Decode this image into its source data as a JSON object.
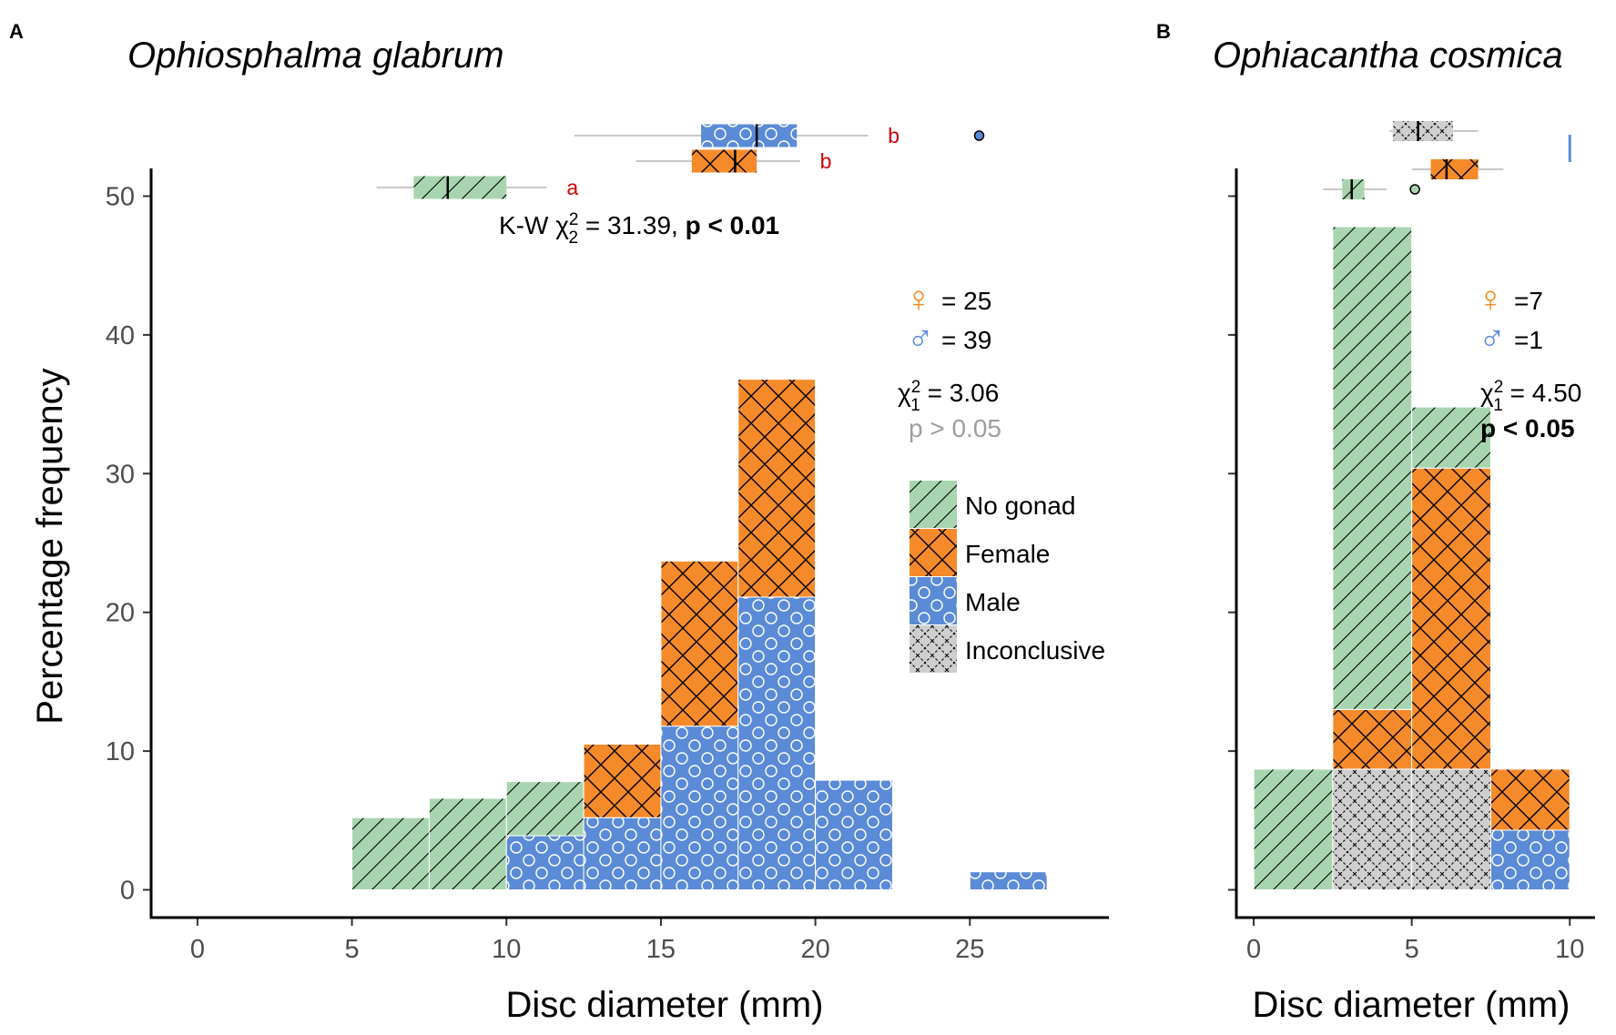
{
  "chart_data": [
    {
      "type": "bar",
      "panel": "A",
      "title": "Ophiosphalma glabrum",
      "xlabel": "Disc diameter (mm)",
      "ylabel": "Percentage frequency",
      "xlim": [
        -1.5,
        29.5
      ],
      "ylim": [
        -2,
        52
      ],
      "xticks": [
        "0",
        "5",
        "10",
        "15",
        "20",
        "25"
      ],
      "yticks": [
        "0",
        "10",
        "20",
        "30",
        "40",
        "50"
      ],
      "bin_width": 2.5,
      "bin_starts": [
        5,
        7.5,
        10,
        12.5,
        15,
        17.5,
        20,
        22.5,
        25
      ],
      "series": [
        {
          "name": "Male",
          "values": [
            0,
            0,
            3.9,
            5.2,
            11.8,
            21.1,
            7.9,
            0,
            1.3
          ]
        },
        {
          "name": "Female",
          "values": [
            0,
            0,
            0,
            5.3,
            11.9,
            15.7,
            0,
            0,
            0
          ]
        },
        {
          "name": "No gonad",
          "values": [
            5.2,
            6.6,
            3.9,
            0,
            0,
            0,
            0,
            0,
            0
          ]
        },
        {
          "name": "Inconclusive",
          "values": [
            0,
            0,
            0,
            0,
            0,
            0,
            0,
            0,
            0
          ]
        }
      ],
      "boxplots": [
        {
          "group": "Male",
          "whisker_low": 12.2,
          "q1": 16.3,
          "median": 18.1,
          "q3": 19.4,
          "whisker_high": 21.7,
          "outliers": [
            25.3
          ],
          "letter": "b"
        },
        {
          "group": "Female",
          "whisker_low": 14.2,
          "q1": 16,
          "median": 17.4,
          "q3": 18.1,
          "whisker_high": 19.5,
          "outliers": [],
          "letter": "b"
        },
        {
          "group": "No gonad",
          "whisker_low": 5.8,
          "q1": 7,
          "median": 8.1,
          "q3": 10,
          "whisker_high": 11.3,
          "outliers": [],
          "letter": "a"
        }
      ],
      "kw_test": {
        "prefix": "K-W χ",
        "sup": "2",
        "sub": "2",
        "stat": " = 31.39, ",
        "p": "p < 0.01"
      },
      "sex_counts": {
        "female_symbol": "♀",
        "female": "= 25",
        "male_symbol": "♂",
        "male": "= 39"
      },
      "chi_test": {
        "prefix": "χ",
        "sup": "2",
        "sub": "1",
        "stat": " = 3.06",
        "p": "p > 0.05"
      },
      "legend": {
        "position": "right",
        "entries": [
          {
            "label": "No gonad",
            "pattern": "stripe",
            "color": "#a8d5b0"
          },
          {
            "label": "Female",
            "pattern": "crosshatch",
            "color": "#f58a2a"
          },
          {
            "label": "Male",
            "pattern": "circle",
            "color": "#5b8bd6"
          },
          {
            "label": "Inconclusive",
            "pattern": "crosshatch",
            "color": "#cfcfcf"
          }
        ]
      }
    },
    {
      "type": "bar",
      "panel": "B",
      "title": "Ophiacantha cosmica",
      "xlabel": "Disc diameter (mm)",
      "ylabel": "",
      "xlim": [
        -0.55,
        10.8
      ],
      "ylim": [
        -2,
        52
      ],
      "xticks": [
        "0",
        "5",
        "10"
      ],
      "yticks": [],
      "bin_width": 2.5,
      "bin_starts": [
        0,
        2.5,
        5,
        7.5
      ],
      "series": [
        {
          "name": "Inconclusive",
          "values": [
            0,
            8.7,
            8.7,
            0
          ]
        },
        {
          "name": "Male",
          "values": [
            0,
            0,
            0,
            4.3
          ]
        },
        {
          "name": "Female",
          "values": [
            0,
            4.3,
            21.7,
            4.4
          ]
        },
        {
          "name": "No gonad",
          "values": [
            8.7,
            34.8,
            4.4,
            0
          ]
        }
      ],
      "boxplots": [
        {
          "group": "Inconclusive",
          "whisker_low": 4.3,
          "q1": 4.4,
          "median": 5.2,
          "q3": 6.3,
          "whisker_high": 7.1,
          "outliers": []
        },
        {
          "group": "Male",
          "whisker_low": 10,
          "q1": 10,
          "median": 10,
          "q3": 10,
          "whisker_high": 10,
          "outliers": []
        },
        {
          "group": "Female",
          "whisker_low": 5,
          "q1": 5.6,
          "median": 6.1,
          "q3": 7.1,
          "whisker_high": 7.9,
          "outliers": []
        },
        {
          "group": "No gonad",
          "whisker_low": 2.2,
          "q1": 2.8,
          "median": 3.1,
          "q3": 3.5,
          "whisker_high": 4.2,
          "outliers": [
            5.1
          ]
        }
      ],
      "sex_counts": {
        "female_symbol": "♀",
        "female": "=7",
        "male_symbol": "♂",
        "male": "=1"
      },
      "chi_test": {
        "prefix": "χ",
        "sup": "2",
        "sub": "1",
        "stat": " = 4.50",
        "p": "p < 0.05"
      }
    }
  ]
}
